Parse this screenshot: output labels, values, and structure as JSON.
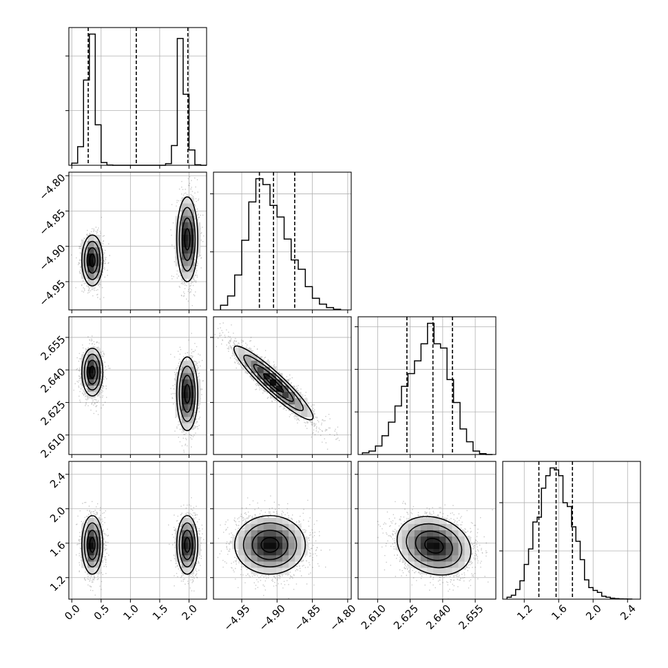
{
  "chart_data": {
    "type": "corner",
    "n_params": 4,
    "params": [
      {
        "index": 0,
        "range": [
          -0.05,
          2.3
        ],
        "ticks": [
          0.0,
          0.5,
          1.0,
          1.5,
          2.0
        ],
        "tick_labels": [
          "0.0",
          "0.5",
          "1.0",
          "1.5",
          "2.0"
        ],
        "quantiles": [
          0.28,
          1.1,
          1.98
        ],
        "hist_edges": [
          0.0,
          0.1,
          0.2,
          0.3,
          0.4,
          0.5,
          0.6,
          0.7,
          1.6,
          1.7,
          1.8,
          1.9,
          2.0,
          2.1,
          2.2,
          2.3
        ],
        "hist_counts": [
          20,
          170,
          780,
          1200,
          370,
          25,
          2,
          0,
          15,
          180,
          1160,
          650,
          140,
          5,
          0
        ]
      },
      {
        "index": 1,
        "range": [
          -4.99,
          -4.795
        ],
        "ticks": [
          -4.95,
          -4.9,
          -4.85,
          -4.8
        ],
        "tick_labels": [
          "−4.95",
          "−4.90",
          "−4.85",
          "−4.80"
        ],
        "quantiles": [
          -4.925,
          -4.905,
          -4.875
        ],
        "hist_edges": [
          -4.98,
          -4.97,
          -4.96,
          -4.95,
          -4.94,
          -4.93,
          -4.92,
          -4.91,
          -4.9,
          -4.89,
          -4.88,
          -4.87,
          -4.86,
          -4.85,
          -4.84,
          -4.83,
          -4.82,
          -4.81
        ],
        "hist_counts": [
          40,
          120,
          300,
          600,
          930,
          1130,
          1080,
          900,
          800,
          610,
          430,
          350,
          200,
          100,
          50,
          20,
          5
        ]
      },
      {
        "index": 2,
        "range": [
          2.601,
          2.6645
        ],
        "ticks": [
          2.61,
          2.625,
          2.64,
          2.655
        ],
        "tick_labels": [
          "2.610",
          "2.625",
          "2.640",
          "2.655"
        ],
        "quantiles": [
          2.6235,
          2.6355,
          2.6445
        ],
        "hist_edges": [
          2.603,
          2.606,
          2.609,
          2.612,
          2.615,
          2.618,
          2.621,
          2.624,
          2.627,
          2.63,
          2.633,
          2.636,
          2.639,
          2.642,
          2.645,
          2.648,
          2.651,
          2.654,
          2.657,
          2.66,
          2.663
        ],
        "hist_counts": [
          20,
          40,
          100,
          220,
          380,
          570,
          800,
          950,
          1100,
          1300,
          1540,
          1300,
          1250,
          880,
          610,
          300,
          150,
          40,
          10,
          0
        ]
      },
      {
        "index": 3,
        "range": [
          0.95,
          2.55
        ],
        "ticks": [
          1.2,
          1.6,
          2.0,
          2.4
        ],
        "tick_labels": [
          "1.2",
          "1.6",
          "2.0",
          "2.4"
        ],
        "quantiles": [
          1.37,
          1.57,
          1.76
        ],
        "hist_edges": [
          1.0,
          1.05,
          1.1,
          1.15,
          1.2,
          1.25,
          1.3,
          1.35,
          1.4,
          1.45,
          1.5,
          1.55,
          1.6,
          1.65,
          1.7,
          1.75,
          1.8,
          1.85,
          1.9,
          1.95,
          2.0,
          2.05,
          2.1,
          2.15,
          2.2,
          2.25,
          2.3,
          2.35,
          2.4,
          2.45
        ],
        "hist_counts": [
          20,
          40,
          100,
          190,
          360,
          520,
          800,
          850,
          1150,
          1280,
          1360,
          1340,
          1280,
          1000,
          960,
          750,
          600,
          410,
          200,
          120,
          90,
          70,
          30,
          20,
          10,
          5,
          3,
          2,
          1
        ]
      }
    ],
    "pairs": [
      {
        "x_param": 0,
        "y_param": 1,
        "clusters": [
          {
            "cx": 0.35,
            "cy": -4.92,
            "sx": 0.09,
            "sy": 0.018,
            "rho": 0.0,
            "n": 1500
          },
          {
            "cx": 1.97,
            "cy": -4.89,
            "sx": 0.09,
            "sy": 0.03,
            "rho": 0.0,
            "n": 1500
          }
        ]
      },
      {
        "x_param": 0,
        "y_param": 2,
        "clusters": [
          {
            "cx": 0.35,
            "cy": 2.639,
            "sx": 0.09,
            "sy": 0.0055,
            "rho": 0.0,
            "n": 1500
          },
          {
            "cx": 1.97,
            "cy": 2.629,
            "sx": 0.09,
            "sy": 0.0085,
            "rho": 0.0,
            "n": 1500
          }
        ]
      },
      {
        "x_param": 1,
        "y_param": 2,
        "clusters": [
          {
            "cx": -4.905,
            "cy": 2.634,
            "sx": 0.028,
            "sy": 0.0085,
            "rho": -0.93,
            "n": 3000
          }
        ]
      },
      {
        "x_param": 0,
        "y_param": 3,
        "clusters": [
          {
            "cx": 0.35,
            "cy": 1.58,
            "sx": 0.09,
            "sy": 0.17,
            "rho": 0.0,
            "n": 1500
          },
          {
            "cx": 1.97,
            "cy": 1.58,
            "sx": 0.09,
            "sy": 0.17,
            "rho": 0.0,
            "n": 1500
          }
        ]
      },
      {
        "x_param": 1,
        "y_param": 3,
        "clusters": [
          {
            "cx": -4.91,
            "cy": 1.58,
            "sx": 0.025,
            "sy": 0.17,
            "rho": 0.0,
            "n": 3000
          }
        ]
      },
      {
        "x_param": 2,
        "y_param": 3,
        "clusters": [
          {
            "cx": 2.636,
            "cy": 1.57,
            "sx": 0.0085,
            "sy": 0.17,
            "rho": -0.2,
            "n": 3000
          }
        ]
      }
    ],
    "contour_levels": [
      0.118,
      0.393,
      0.675,
      0.865
    ],
    "grid": true
  }
}
